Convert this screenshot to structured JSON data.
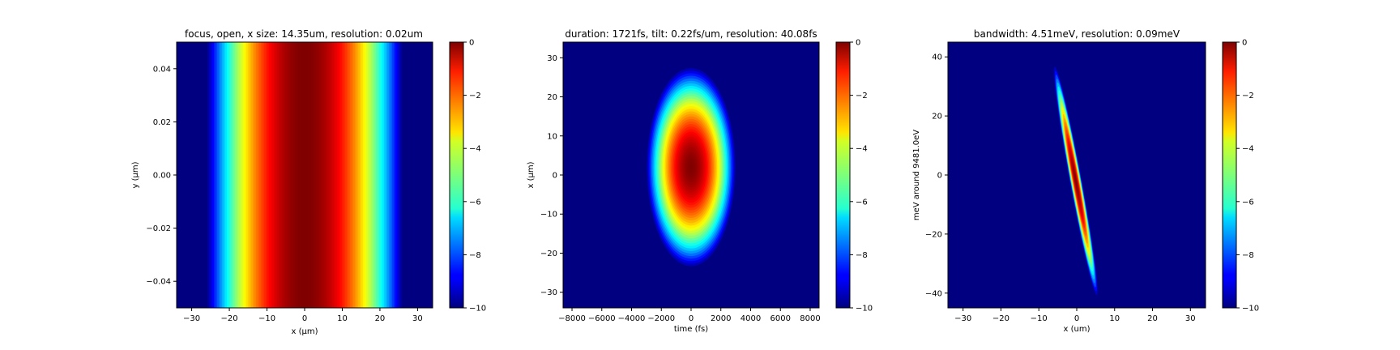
{
  "chart_data": [
    {
      "type": "heatmap",
      "title": "focus, open, x size: 14.35um, resolution: 0.02um",
      "xlabel": "x (μm)",
      "ylabel": "y (μm)",
      "xlim": [
        -34,
        34
      ],
      "ylim": [
        -0.05,
        0.05
      ],
      "xticks": [
        -30,
        -20,
        -10,
        0,
        10,
        20,
        30
      ],
      "xtick_labels": [
        "−30",
        "−20",
        "−10",
        "0",
        "10",
        "20",
        "30"
      ],
      "yticks": [
        -0.04,
        -0.02,
        0.0,
        0.02,
        0.04
      ],
      "ytick_labels": [
        "−0.04",
        "−0.02",
        "0.00",
        "0.02",
        "0.04"
      ],
      "colorbar": {
        "range": [
          -10,
          0
        ],
        "ticks": [
          0,
          -2,
          -4,
          -6,
          -8,
          -10
        ],
        "tick_labels": [
          "0",
          "−2",
          "−4",
          "−6",
          "−8",
          "−10"
        ]
      },
      "colormap": "jet",
      "pattern": {
        "kind": "vertical-band",
        "center": 0,
        "half_width": 26
      }
    },
    {
      "type": "heatmap",
      "title": "duration: 1721fs, tilt: 0.22fs/um, resolution: 40.08fs",
      "xlabel": "time (fs)",
      "ylabel": "x (μm)",
      "xlim": [
        -8600,
        8600
      ],
      "ylim": [
        -34,
        34
      ],
      "xticks": [
        -8000,
        -6000,
        -4000,
        -2000,
        0,
        2000,
        4000,
        6000,
        8000
      ],
      "xtick_labels": [
        "−8000",
        "−6000",
        "−4000",
        "−2000",
        "0",
        "2000",
        "4000",
        "6000",
        "8000"
      ],
      "yticks": [
        -30,
        -20,
        -10,
        0,
        10,
        20,
        30
      ],
      "ytick_labels": [
        "−30",
        "−20",
        "−10",
        "0",
        "10",
        "20",
        "30"
      ],
      "colorbar": {
        "range": [
          -10,
          0
        ],
        "ticks": [
          0,
          -2,
          -4,
          -6,
          -8,
          -10
        ],
        "tick_labels": [
          "0",
          "−2",
          "−4",
          "−6",
          "−8",
          "−10"
        ]
      },
      "colormap": "jet",
      "pattern": {
        "kind": "ellipse",
        "cx": 0,
        "cy": 2,
        "rx": 3050,
        "ry": 26
      }
    },
    {
      "type": "heatmap",
      "title": "bandwidth: 4.51meV, resolution: 0.09meV",
      "xlabel": "x (um)",
      "ylabel": "meV around 9481.0eV",
      "xlim": [
        -34,
        34
      ],
      "ylim": [
        -45,
        45
      ],
      "xticks": [
        -30,
        -20,
        -10,
        0,
        10,
        20,
        30
      ],
      "xtick_labels": [
        "−30",
        "−20",
        "−10",
        "0",
        "10",
        "20",
        "30"
      ],
      "yticks": [
        -40,
        -20,
        0,
        20,
        40
      ],
      "ytick_labels": [
        "−40",
        "−20",
        "0",
        "20",
        "40"
      ],
      "colorbar": {
        "range": [
          -10,
          0
        ],
        "ticks": [
          0,
          -2,
          -4,
          -6,
          -8,
          -10
        ],
        "tick_labels": [
          "0",
          "−2",
          "−4",
          "−6",
          "−8",
          "−10"
        ]
      },
      "colormap": "jet",
      "pattern": {
        "kind": "tilted-streak",
        "x_at_top": -6,
        "y_top": 38,
        "x_at_bottom": 5.5,
        "y_bottom": -42,
        "half_width": 1.6
      }
    }
  ]
}
